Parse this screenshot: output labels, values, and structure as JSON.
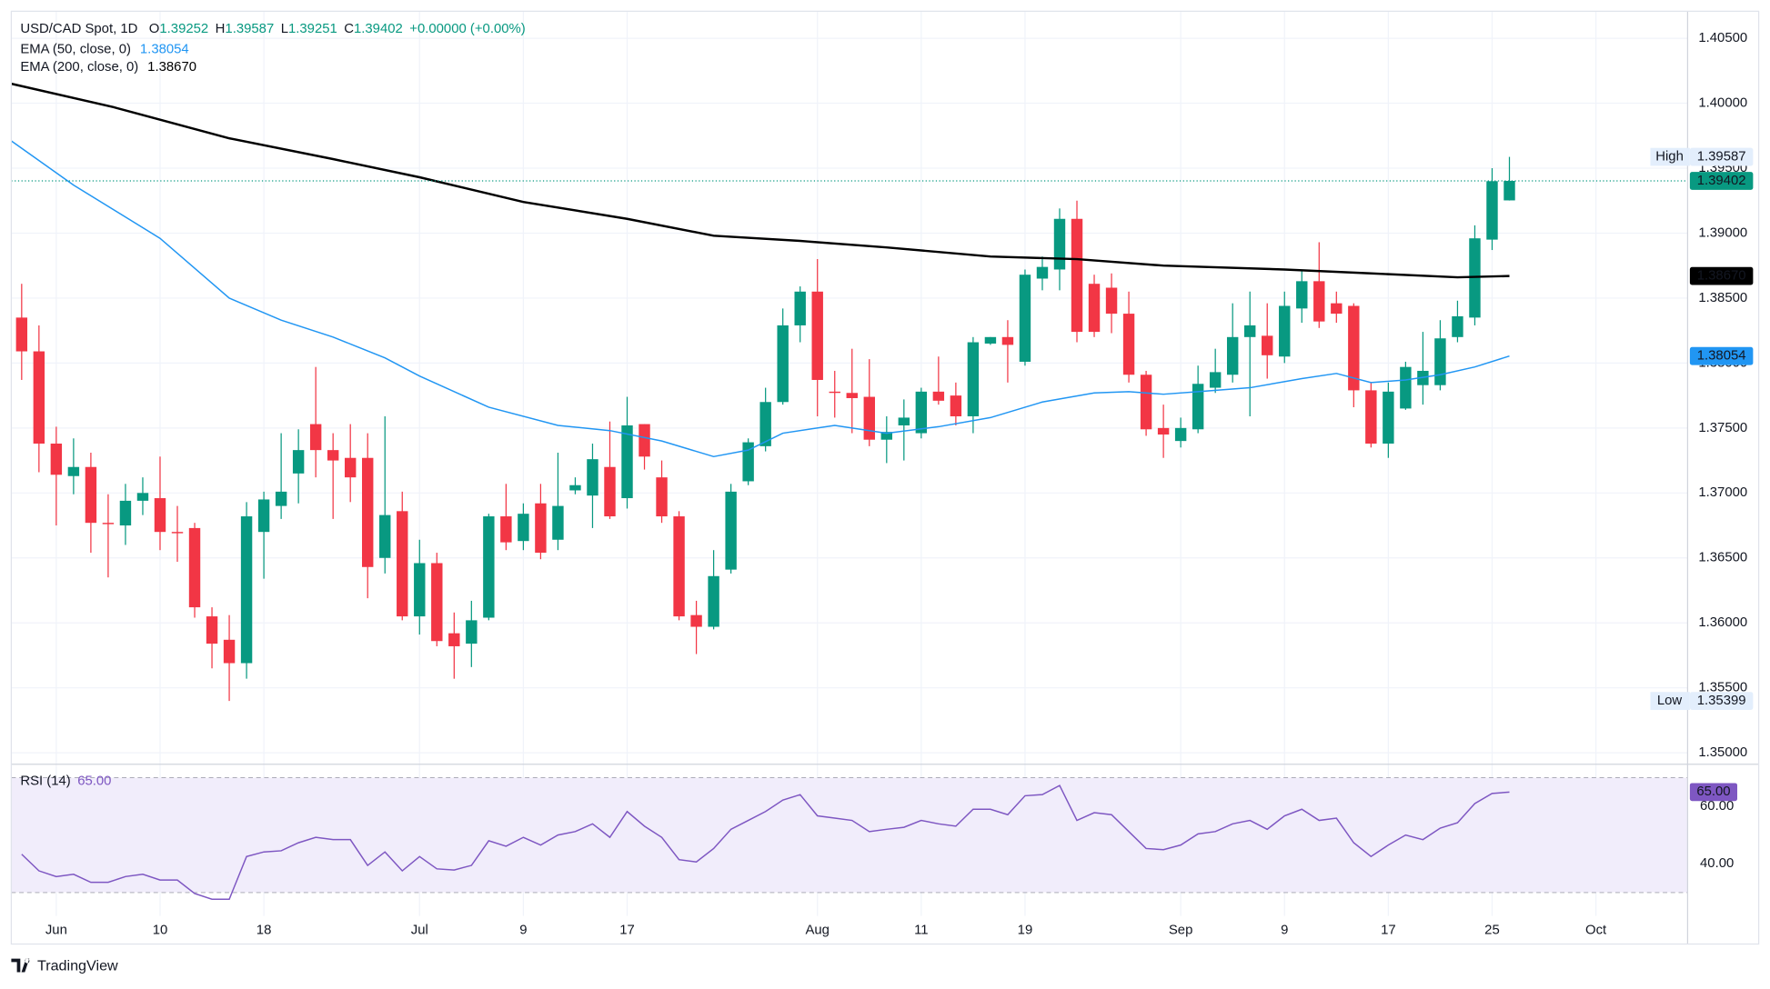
{
  "header": {
    "symbol": "USD/CAD Spot, 1D",
    "ohlc_keys": [
      "O",
      "H",
      "L",
      "C"
    ],
    "ohlc_values": [
      "1.39252",
      "1.39587",
      "1.39251",
      "1.39402"
    ],
    "change": "+0.00000 (+0.00%)",
    "value_color": "#089981"
  },
  "footer": {
    "brand": "TradingView"
  },
  "chart_data": [
    {
      "type": "candlestick",
      "colors": {
        "up": "#089981",
        "down": "#f23645"
      },
      "open": [
        1.3835,
        1.3809,
        1.3738,
        1.3713,
        1.372,
        1.3677,
        1.3675,
        1.3694,
        1.3696,
        1.367,
        1.3673,
        1.3605,
        1.3587,
        1.3569,
        1.367,
        1.369,
        1.3715,
        1.3753,
        1.3733,
        1.3727,
        1.3727,
        1.365,
        1.3686,
        1.3605,
        1.3646,
        1.3592,
        1.3584,
        1.3604,
        1.3682,
        1.3663,
        1.3692,
        1.3664,
        1.3702,
        1.3698,
        1.372,
        1.3696,
        1.3753,
        1.3712,
        1.3682,
        1.3606,
        1.3597,
        1.3641,
        1.3709,
        1.3736,
        1.377,
        1.3829,
        1.3855,
        1.3778,
        1.3777,
        1.3774,
        1.3741,
        1.3752,
        1.3746,
        1.3778,
        1.3775,
        1.3759,
        1.3815,
        1.382,
        1.3801,
        1.3865,
        1.3872,
        1.3911,
        1.3861,
        1.3858,
        1.3838,
        1.3791,
        1.375,
        1.374,
        1.3749,
        1.3781,
        1.3791,
        1.382,
        1.3821,
        1.3805,
        1.3842,
        1.3863,
        1.3846,
        1.3844,
        1.3779,
        1.3738,
        1.3765,
        1.3783,
        1.3783,
        1.382,
        1.3835,
        1.3895,
        1.39252
      ],
      "high": [
        1.3861,
        1.3829,
        1.3751,
        1.3742,
        1.3731,
        1.3699,
        1.3707,
        1.3712,
        1.3728,
        1.369,
        1.3677,
        1.3612,
        1.3606,
        1.3693,
        1.3701,
        1.3746,
        1.3749,
        1.3797,
        1.3746,
        1.3753,
        1.3746,
        1.3759,
        1.3701,
        1.3664,
        1.3654,
        1.3608,
        1.3617,
        1.3684,
        1.3707,
        1.3692,
        1.3707,
        1.3731,
        1.3712,
        1.3738,
        1.3755,
        1.3774,
        1.3753,
        1.3725,
        1.3686,
        1.3617,
        1.3656,
        1.3707,
        1.3742,
        1.3781,
        1.3842,
        1.3859,
        1.388,
        1.3794,
        1.3811,
        1.3803,
        1.3759,
        1.3772,
        1.3781,
        1.3805,
        1.3785,
        1.382,
        1.382,
        1.3833,
        1.3872,
        1.3882,
        1.3919,
        1.3925,
        1.3868,
        1.3869,
        1.3855,
        1.3794,
        1.3768,
        1.3758,
        1.3798,
        1.3811,
        1.3846,
        1.3855,
        1.3846,
        1.3855,
        1.3872,
        1.3893,
        1.3855,
        1.3846,
        1.3785,
        1.3785,
        1.3801,
        1.3824,
        1.3833,
        1.3848,
        1.3906,
        1.395,
        1.39587
      ],
      "low": [
        1.3787,
        1.3716,
        1.3675,
        1.3699,
        1.3654,
        1.3635,
        1.366,
        1.3683,
        1.3656,
        1.3647,
        1.3604,
        1.3565,
        1.35399,
        1.3557,
        1.3634,
        1.368,
        1.3692,
        1.3712,
        1.368,
        1.3693,
        1.3619,
        1.3638,
        1.3602,
        1.3591,
        1.3582,
        1.3557,
        1.3566,
        1.3602,
        1.3656,
        1.3656,
        1.3649,
        1.3656,
        1.3699,
        1.3673,
        1.368,
        1.3688,
        1.3718,
        1.3677,
        1.3602,
        1.3576,
        1.3595,
        1.3638,
        1.3706,
        1.3732,
        1.3768,
        1.3816,
        1.3759,
        1.3758,
        1.3746,
        1.3736,
        1.3723,
        1.3725,
        1.3742,
        1.3768,
        1.3752,
        1.3746,
        1.3814,
        1.3785,
        1.3798,
        1.3856,
        1.3856,
        1.3816,
        1.382,
        1.3823,
        1.3785,
        1.3744,
        1.3727,
        1.3735,
        1.3746,
        1.3777,
        1.3785,
        1.3759,
        1.3788,
        1.38,
        1.3831,
        1.3827,
        1.3831,
        1.3766,
        1.3735,
        1.3727,
        1.3764,
        1.3768,
        1.3779,
        1.3816,
        1.3829,
        1.3887,
        1.39251
      ],
      "close": [
        1.3809,
        1.3738,
        1.3714,
        1.372,
        1.3677,
        1.3676,
        1.3694,
        1.37,
        1.367,
        1.3669,
        1.3612,
        1.3584,
        1.3569,
        1.3682,
        1.3695,
        1.3701,
        1.3733,
        1.3733,
        1.3725,
        1.3712,
        1.3643,
        1.3683,
        1.3605,
        1.3646,
        1.3586,
        1.3582,
        1.3602,
        1.3682,
        1.3662,
        1.3684,
        1.3654,
        1.369,
        1.3706,
        1.3726,
        1.3682,
        1.3752,
        1.3728,
        1.3682,
        1.3605,
        1.3597,
        1.3636,
        1.3701,
        1.3739,
        1.377,
        1.3829,
        1.3855,
        1.3787,
        1.3777,
        1.3773,
        1.3741,
        1.3747,
        1.3758,
        1.3778,
        1.3771,
        1.3759,
        1.3816,
        1.382,
        1.3814,
        1.3868,
        1.3874,
        1.3911,
        1.3824,
        1.3824,
        1.3838,
        1.3791,
        1.3749,
        1.3745,
        1.375,
        1.3784,
        1.3793,
        1.382,
        1.3829,
        1.3806,
        1.3844,
        1.3863,
        1.3832,
        1.3838,
        1.3779,
        1.3738,
        1.3778,
        1.3797,
        1.3794,
        1.3819,
        1.3836,
        1.3896,
        1.394,
        1.39402
      ],
      "overlays": [
        {
          "name": "EMA (50, close, 0)",
          "value_label": "1.38054",
          "color": "#2196f3",
          "x": [
            -0.6,
            3,
            8,
            12,
            15,
            18,
            21,
            23,
            27,
            31,
            34,
            37,
            40,
            42,
            44,
            47,
            50,
            53,
            56,
            59,
            62,
            64,
            66,
            68,
            71,
            74,
            76,
            78,
            80,
            82,
            84,
            86
          ],
          "values": [
            1.3971,
            1.3937,
            1.3896,
            1.385,
            1.3833,
            1.382,
            1.3804,
            1.379,
            1.3766,
            1.3752,
            1.3748,
            1.374,
            1.3728,
            1.3733,
            1.3746,
            1.3752,
            1.3746,
            1.3751,
            1.3758,
            1.377,
            1.3777,
            1.3778,
            1.3776,
            1.3778,
            1.3781,
            1.3788,
            1.3792,
            1.3785,
            1.3787,
            1.3791,
            1.3797,
            1.38054
          ]
        },
        {
          "name": "EMA (200, close, 0)",
          "value_label": "1.38670",
          "color": "#000000",
          "x": [
            -0.6,
            5.3,
            12,
            18,
            23,
            29,
            35,
            40,
            45,
            50,
            56,
            61,
            66,
            73,
            78,
            83,
            86
          ],
          "values": [
            1.4015,
            1.3997,
            1.3973,
            1.3957,
            1.3943,
            1.3924,
            1.3911,
            1.3898,
            1.3894,
            1.3889,
            1.3882,
            1.388,
            1.3875,
            1.3872,
            1.3869,
            1.3866,
            1.3867
          ]
        }
      ],
      "price_badges": [
        {
          "value": 1.39587,
          "label": "1.39587",
          "tag": "High",
          "color": "#e3eefc",
          "text_color": "#131722"
        },
        {
          "value": 1.39402,
          "label": "1.39402",
          "color": "#089981",
          "text_color": "#ffffff",
          "line": true
        },
        {
          "value": 1.3867,
          "label": "1.38670",
          "color": "#000000",
          "text_color": "#ffffff"
        },
        {
          "value": 1.38054,
          "label": "1.38054",
          "color": "#2196f3",
          "text_color": "#ffffff"
        },
        {
          "value": 1.35399,
          "label": "1.35399",
          "tag": "Low",
          "color": "#e3eefc",
          "text_color": "#131722"
        }
      ],
      "xlim": [
        -0.6,
        96.3
      ],
      "xticks": [
        {
          "value": 2,
          "label": "Jun"
        },
        {
          "value": 8,
          "label": "10"
        },
        {
          "value": 14,
          "label": "18"
        },
        {
          "value": 23,
          "label": "Jul"
        },
        {
          "value": 29,
          "label": "9"
        },
        {
          "value": 35,
          "label": "17"
        },
        {
          "value": 46,
          "label": "Aug"
        },
        {
          "value": 52,
          "label": "11"
        },
        {
          "value": 58,
          "label": "19"
        },
        {
          "value": 67,
          "label": "Sep"
        },
        {
          "value": 73,
          "label": "9"
        },
        {
          "value": 79,
          "label": "17"
        },
        {
          "value": 85,
          "label": "25"
        },
        {
          "value": 91,
          "label": "Oct"
        }
      ],
      "ylim": [
        1.34912,
        1.40708
      ],
      "yticks": [
        {
          "value": 1.35,
          "label": "1.35000"
        },
        {
          "value": 1.355,
          "label": "1.35500"
        },
        {
          "value": 1.36,
          "label": "1.36000"
        },
        {
          "value": 1.365,
          "label": "1.36500"
        },
        {
          "value": 1.37,
          "label": "1.37000"
        },
        {
          "value": 1.375,
          "label": "1.37500"
        },
        {
          "value": 1.38,
          "label": "1.38000"
        },
        {
          "value": 1.385,
          "label": "1.38500"
        },
        {
          "value": 1.39,
          "label": "1.39000"
        },
        {
          "value": 1.395,
          "label": "1.39500"
        },
        {
          "value": 1.4,
          "label": "1.40000"
        },
        {
          "value": 1.405,
          "label": "1.40500"
        }
      ],
      "grid": true
    },
    {
      "type": "line",
      "series": [
        {
          "name": "RSI (14)",
          "value_label": "65.00",
          "color": "#7e57c2",
          "values": [
            43.3,
            37.5,
            35.5,
            36.3,
            33.5,
            33.5,
            35.5,
            36.3,
            34.3,
            34.3,
            29.6,
            27.6,
            27.6,
            42.5,
            44.1,
            44.5,
            47.3,
            49.2,
            48.4,
            48.4,
            39.4,
            44.1,
            37.5,
            42.5,
            38.2,
            37.8,
            39.4,
            48.0,
            46.1,
            49.2,
            46.5,
            50.0,
            51.2,
            53.9,
            49.2,
            58.2,
            53.1,
            49.2,
            41.4,
            40.6,
            45.3,
            52.0,
            55.1,
            58.2,
            62.2,
            64.1,
            56.7,
            55.9,
            55.1,
            51.2,
            52.0,
            52.7,
            55.1,
            53.9,
            53.1,
            59,
            59,
            57.1,
            63.7,
            64.1,
            67.3,
            55.1,
            57.8,
            57.1,
            51.2,
            45.3,
            44.9,
            46.5,
            50.4,
            51.2,
            53.9,
            55.1,
            52.0,
            56.7,
            59,
            55.1,
            55.9,
            47.3,
            42.5,
            46.5,
            50.0,
            48.4,
            52.4,
            54.3,
            61.0,
            64.5,
            65.0
          ]
        }
      ],
      "badge": {
        "value": 65,
        "label": "65.00"
      },
      "levels": [
        70,
        50,
        30
      ],
      "band_color": "#f1edfb",
      "ylim": [
        21.76,
        74.71
      ],
      "yticks": [
        {
          "value": 60,
          "label": "60.00"
        },
        {
          "value": 40,
          "label": "40.00"
        }
      ]
    }
  ]
}
